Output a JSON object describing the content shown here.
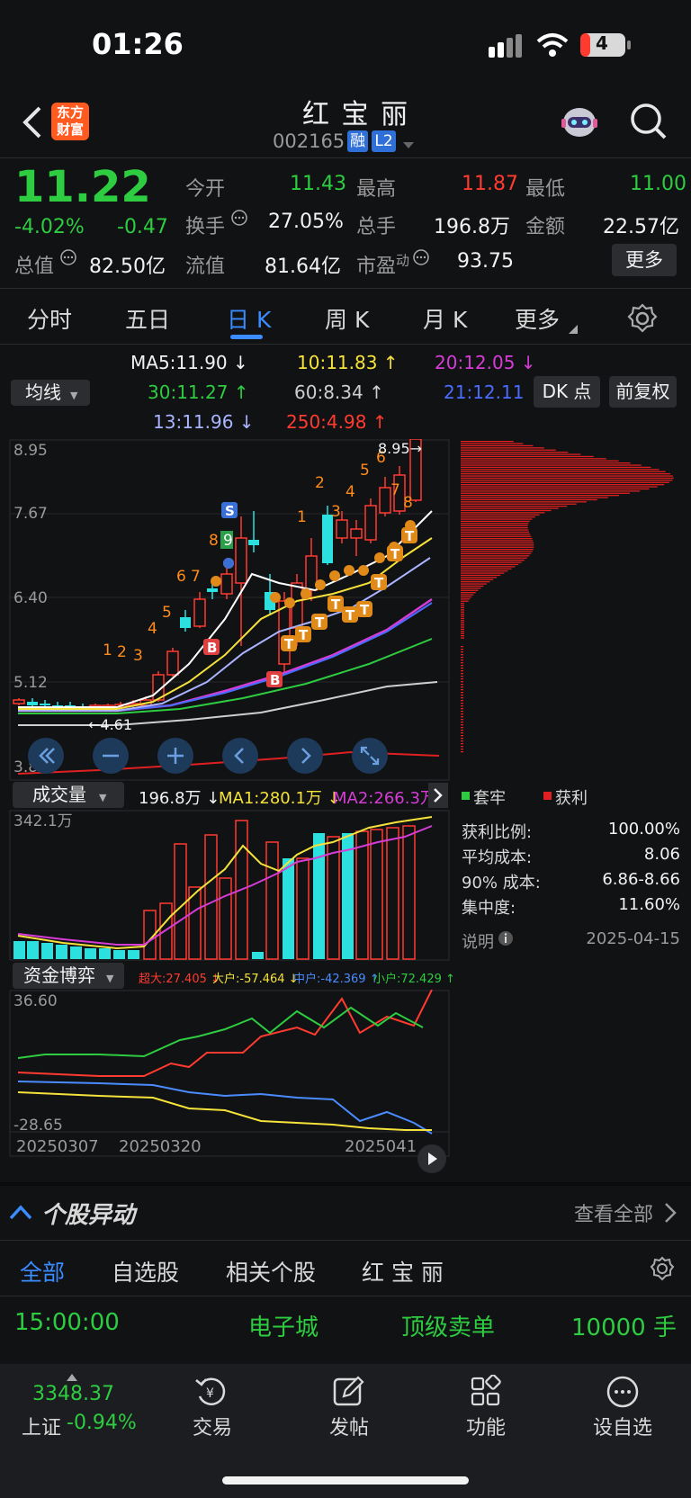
{
  "status_bar": {
    "time": "01:26",
    "battery": "4"
  },
  "header": {
    "title": "红 宝 丽",
    "code": "002165",
    "badge_rong": "融",
    "badge_l2": "L2",
    "logo_line1": "东方",
    "logo_line2": "财富"
  },
  "quote": {
    "price": "11.22",
    "change_pct": "-4.02%",
    "change": "-0.47",
    "open_label": "今开",
    "open": "11.43",
    "high_label": "最高",
    "high": "11.87",
    "low_label": "最低",
    "low": "11.00",
    "turnover_label": "换手",
    "turnover": "27.05%",
    "volume_label": "总手",
    "volume": "196.8万",
    "amount_label": "金额",
    "amount": "22.57亿",
    "mktcap_label": "总值",
    "mktcap": "82.50亿",
    "float_label": "流值",
    "float": "81.64亿",
    "pe_label": "市盈",
    "pe_sup": "动",
    "pe": "93.75",
    "more_btn": "更多"
  },
  "tabs": [
    {
      "label": "分时"
    },
    {
      "label": "五日"
    },
    {
      "label": "日 K"
    },
    {
      "label": "周 K"
    },
    {
      "label": "月 K"
    },
    {
      "label": "更多"
    }
  ],
  "ma": {
    "selector": "均线",
    "ma5": "MA5:11.90 ↓",
    "ma10": "10:11.83 ↑",
    "ma20": "20:12.05 ↓",
    "ma30": "30:11.27 ↑",
    "ma60": "60:8.34 ↑",
    "ma21": "21:12.11 ↓",
    "ma13": "13:11.96 ↓",
    "ma250": "250:4.98 ↑",
    "dk_btn": "DK 点",
    "fq_btn": "前复权"
  },
  "kchart": {
    "y_labels": [
      "8.95",
      "7.67",
      "6.40",
      "5.12",
      "3.85"
    ],
    "high_mark": "8.95→",
    "low_mark": "←4.61",
    "seq_numbers": [
      "1",
      "2",
      "3",
      "4",
      "5",
      "6",
      "7",
      "8",
      "9",
      "1",
      "2",
      "3",
      "4",
      "5",
      "6",
      "7",
      "8"
    ]
  },
  "volume": {
    "selector": "成交量",
    "vol": "196.8万 ↓",
    "ma1": "MA1:280.1万 ↓",
    "ma2": "MA2:266.3万",
    "max_label": "342.1万"
  },
  "chips": {
    "legend_trap": "套牢",
    "legend_profit": "获利",
    "rows": [
      {
        "label": "获利比例:",
        "value": "100.00%"
      },
      {
        "label": "平均成本:",
        "value": "8.06"
      },
      {
        "label": "90% 成本:",
        "value": "6.86-8.66"
      },
      {
        "label": "集中度:",
        "value": "11.60%"
      }
    ],
    "note_label": "说明",
    "date": "2025-04-15"
  },
  "fund": {
    "selector": "资金博弈",
    "super": "超大:27.405 ↓",
    "large": "大户:-57.464 ↓",
    "medium": "中户:-42.369 ↑",
    "small": "小户:72.429 ↑",
    "max_label": "36.60",
    "min_label": "-28.65",
    "dates": [
      "20250307",
      "20250320",
      "2025041"
    ]
  },
  "movement": {
    "title": "个股异动",
    "view_all": "查看全部",
    "tabs": [
      "全部",
      "自选股",
      "相关个股",
      "红 宝 丽"
    ],
    "row": {
      "time": "15:00:00",
      "name": "电子城",
      "type": "顶级卖单",
      "qty": "10000 手"
    }
  },
  "bottom_bar": {
    "index_value": "3348.37",
    "index_name": "上证",
    "index_change": "-0.94%",
    "items": [
      {
        "label": "交易"
      },
      {
        "label": "发帖"
      },
      {
        "label": "功能"
      },
      {
        "label": "设自选"
      }
    ]
  },
  "colors": {
    "up": "#ff3b30",
    "down": "#2ecc40",
    "cyan": "#2de0e0",
    "accent": "#3b8cff"
  }
}
